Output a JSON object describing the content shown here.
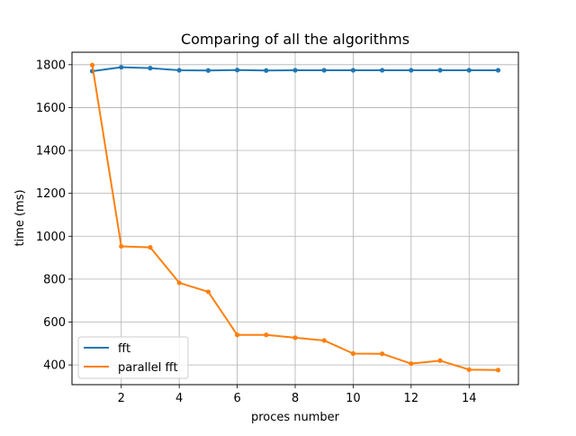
{
  "chart_data": {
    "type": "line",
    "title": "Comparing of all the algorithms",
    "xlabel": "proces number",
    "ylabel": "time (ms)",
    "x": [
      1,
      2,
      3,
      4,
      5,
      6,
      7,
      8,
      9,
      10,
      11,
      12,
      13,
      14,
      15
    ],
    "xlim": [
      0.3,
      15.7
    ],
    "ylim": [
      308,
      1858
    ],
    "xticks": [
      2,
      4,
      6,
      8,
      10,
      12,
      14
    ],
    "yticks": [
      400,
      600,
      800,
      1000,
      1200,
      1400,
      1600,
      1800
    ],
    "grid": true,
    "legend_position": "lower-left",
    "series": [
      {
        "name": "fft",
        "color": "#1f77b4",
        "values": [
          1770,
          1788,
          1784,
          1774,
          1773,
          1775,
          1773,
          1774,
          1774,
          1774,
          1774,
          1774,
          1774,
          1774,
          1774
        ]
      },
      {
        "name": "parallel fft",
        "color": "#ff7f0e",
        "values": [
          1798,
          953,
          948,
          783,
          741,
          540,
          540,
          527,
          514,
          453,
          452,
          406,
          420,
          378,
          376
        ]
      }
    ]
  }
}
